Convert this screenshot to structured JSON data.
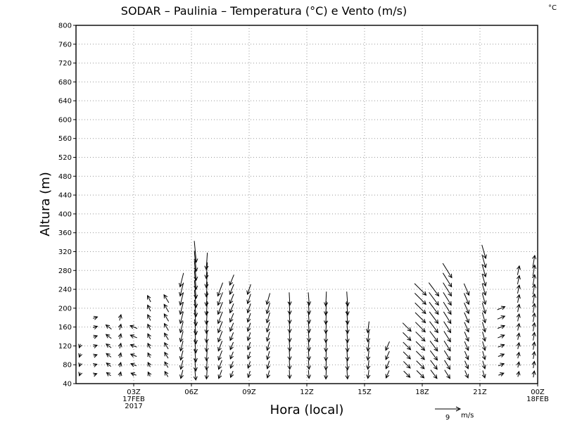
{
  "chart_data": {
    "type": "vector-field",
    "title": "SODAR – Paulinia – Temperatura (°C) e Vento (m/s)",
    "corner_unit": "°C",
    "xlabel": "Hora (local)",
    "ylabel": "Altura (m)",
    "xlim": [
      0,
      24
    ],
    "ylim": [
      40,
      800
    ],
    "y_ticks": [
      40,
      80,
      120,
      160,
      200,
      240,
      280,
      320,
      360,
      400,
      440,
      480,
      520,
      560,
      600,
      640,
      680,
      720,
      760,
      800
    ],
    "x_ticks": [
      {
        "x": 3,
        "lines": [
          "03Z",
          "17FEB",
          "2017"
        ]
      },
      {
        "x": 6,
        "lines": [
          "06Z"
        ]
      },
      {
        "x": 9,
        "lines": [
          "09Z"
        ]
      },
      {
        "x": 12,
        "lines": [
          "12Z"
        ]
      },
      {
        "x": 15,
        "lines": [
          "15Z"
        ]
      },
      {
        "x": 18,
        "lines": [
          "18Z"
        ]
      },
      {
        "x": 21,
        "lines": [
          "21Z"
        ]
      },
      {
        "x": 24,
        "lines": [
          "00Z",
          "18FEB"
        ]
      }
    ],
    "grid": true,
    "reference_vector": {
      "speed": 9,
      "unit": "m/s",
      "label_value": "9",
      "label_unit": "m/s"
    },
    "heights": [
      60,
      80,
      100,
      120,
      140,
      160,
      180,
      200,
      220,
      240,
      260,
      280,
      300,
      320
    ],
    "wind_profiles": [
      {
        "hour": 0.2,
        "top": 120,
        "u": -0.5,
        "v": -1.5
      },
      {
        "hour": 1.0,
        "top": 190,
        "u": 1.5,
        "v": 0.5
      },
      {
        "hour": 1.7,
        "top": 170,
        "u": -2.0,
        "v": 1.5
      },
      {
        "hour": 2.3,
        "top": 180,
        "u": 0.5,
        "v": 2.0
      },
      {
        "hour": 3.0,
        "top": 160,
        "u": -2.5,
        "v": 1.0
      },
      {
        "hour": 3.8,
        "top": 230,
        "u": -1.0,
        "v": 2.0
      },
      {
        "hour": 4.7,
        "top": 230,
        "u": -1.5,
        "v": 2.5
      },
      {
        "hour": 5.5,
        "top": 260,
        "u": -1.0,
        "v": -4.0
      },
      {
        "hour": 6.2,
        "top": 320,
        "u": 0.5,
        "v": -5.5
      },
      {
        "hour": 6.8,
        "top": 300,
        "u": -0.3,
        "v": -4.5
      },
      {
        "hour": 7.5,
        "top": 250,
        "u": -1.5,
        "v": -4.0
      },
      {
        "hour": 8.1,
        "top": 260,
        "u": -1.2,
        "v": -3.0
      },
      {
        "hour": 9.0,
        "top": 240,
        "u": -1.0,
        "v": -3.0
      },
      {
        "hour": 10.0,
        "top": 220,
        "u": -1.0,
        "v": -3.5
      },
      {
        "hour": 11.1,
        "top": 220,
        "u": 0.2,
        "v": -4.0
      },
      {
        "hour": 12.1,
        "top": 220,
        "u": 0.3,
        "v": -4.0
      },
      {
        "hour": 13.0,
        "top": 220,
        "u": -0.2,
        "v": -4.5
      },
      {
        "hour": 14.1,
        "top": 220,
        "u": 0.3,
        "v": -4.5
      },
      {
        "hour": 15.2,
        "top": 170,
        "u": -0.5,
        "v": -4.0
      },
      {
        "hour": 16.2,
        "top": 120,
        "u": -1.5,
        "v": -3.5
      },
      {
        "hour": 17.2,
        "top": 160,
        "u": 3.0,
        "v": -3.0
      },
      {
        "hour": 17.9,
        "top": 240,
        "u": 3.5,
        "v": -3.5
      },
      {
        "hour": 18.6,
        "top": 240,
        "u": 3.0,
        "v": -4.0
      },
      {
        "hour": 19.3,
        "top": 280,
        "u": 2.5,
        "v": -4.0
      },
      {
        "hour": 20.3,
        "top": 250,
        "u": 1.5,
        "v": -3.5
      },
      {
        "hour": 21.2,
        "top": 340,
        "u": 1.0,
        "v": -3.5
      },
      {
        "hour": 22.1,
        "top": 210,
        "u": 2.5,
        "v": 1.0
      },
      {
        "hour": 23.0,
        "top": 290,
        "u": 0.5,
        "v": 2.5
      },
      {
        "hour": 23.8,
        "top": 300,
        "u": 0.5,
        "v": 3.0
      }
    ]
  }
}
